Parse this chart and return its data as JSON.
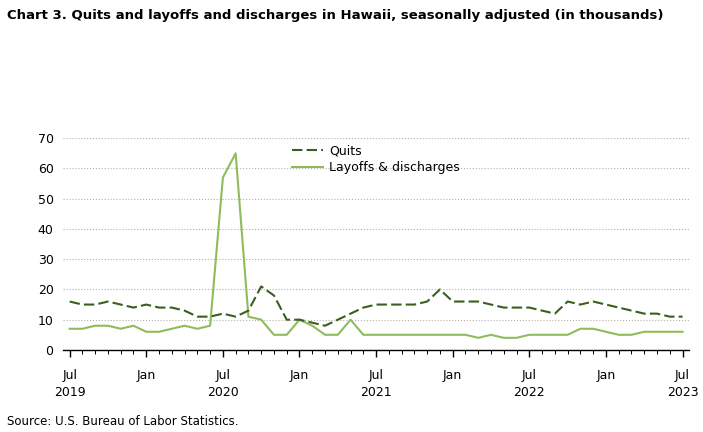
{
  "title": "Chart 3. Quits and layoffs and discharges in Hawaii, seasonally adjusted (in thousands)",
  "source": "Source: U.S. Bureau of Labor Statistics.",
  "legend_quits": "Quits",
  "legend_layoffs": "Layoffs & discharges",
  "quits_color": "#3a5f1e",
  "layoffs_color": "#8fbc5a",
  "ylim": [
    0,
    70
  ],
  "yticks": [
    0,
    10,
    20,
    30,
    40,
    50,
    60,
    70
  ],
  "x_tick_positions": [
    0,
    6,
    12,
    18,
    24,
    30,
    36,
    42,
    48
  ],
  "x_tick_months": [
    "Jul",
    "Jan",
    "Jul",
    "Jan",
    "Jul",
    "Jan",
    "Jul",
    "Jan",
    "Jul"
  ],
  "x_tick_years": [
    "2019",
    "",
    "2020",
    "",
    "2021",
    "",
    "2022",
    "",
    "2023"
  ],
  "quits": [
    16,
    15,
    15,
    16,
    15,
    14,
    15,
    14,
    14,
    13,
    11,
    11,
    12,
    11,
    13,
    21,
    18,
    10,
    10,
    9,
    8,
    10,
    12,
    14,
    15,
    15,
    15,
    15,
    16,
    20,
    16,
    16,
    16,
    15,
    14,
    14,
    14,
    13,
    12,
    16,
    15,
    16,
    15,
    14,
    13,
    12,
    12,
    11,
    11
  ],
  "layoffs": [
    7,
    7,
    8,
    8,
    7,
    8,
    6,
    6,
    7,
    8,
    7,
    8,
    57,
    65,
    11,
    10,
    5,
    5,
    10,
    8,
    5,
    5,
    10,
    5,
    5,
    5,
    5,
    5,
    5,
    5,
    5,
    5,
    4,
    5,
    4,
    4,
    5,
    5,
    5,
    5,
    7,
    7,
    6,
    5,
    5,
    6,
    6,
    6,
    6
  ]
}
